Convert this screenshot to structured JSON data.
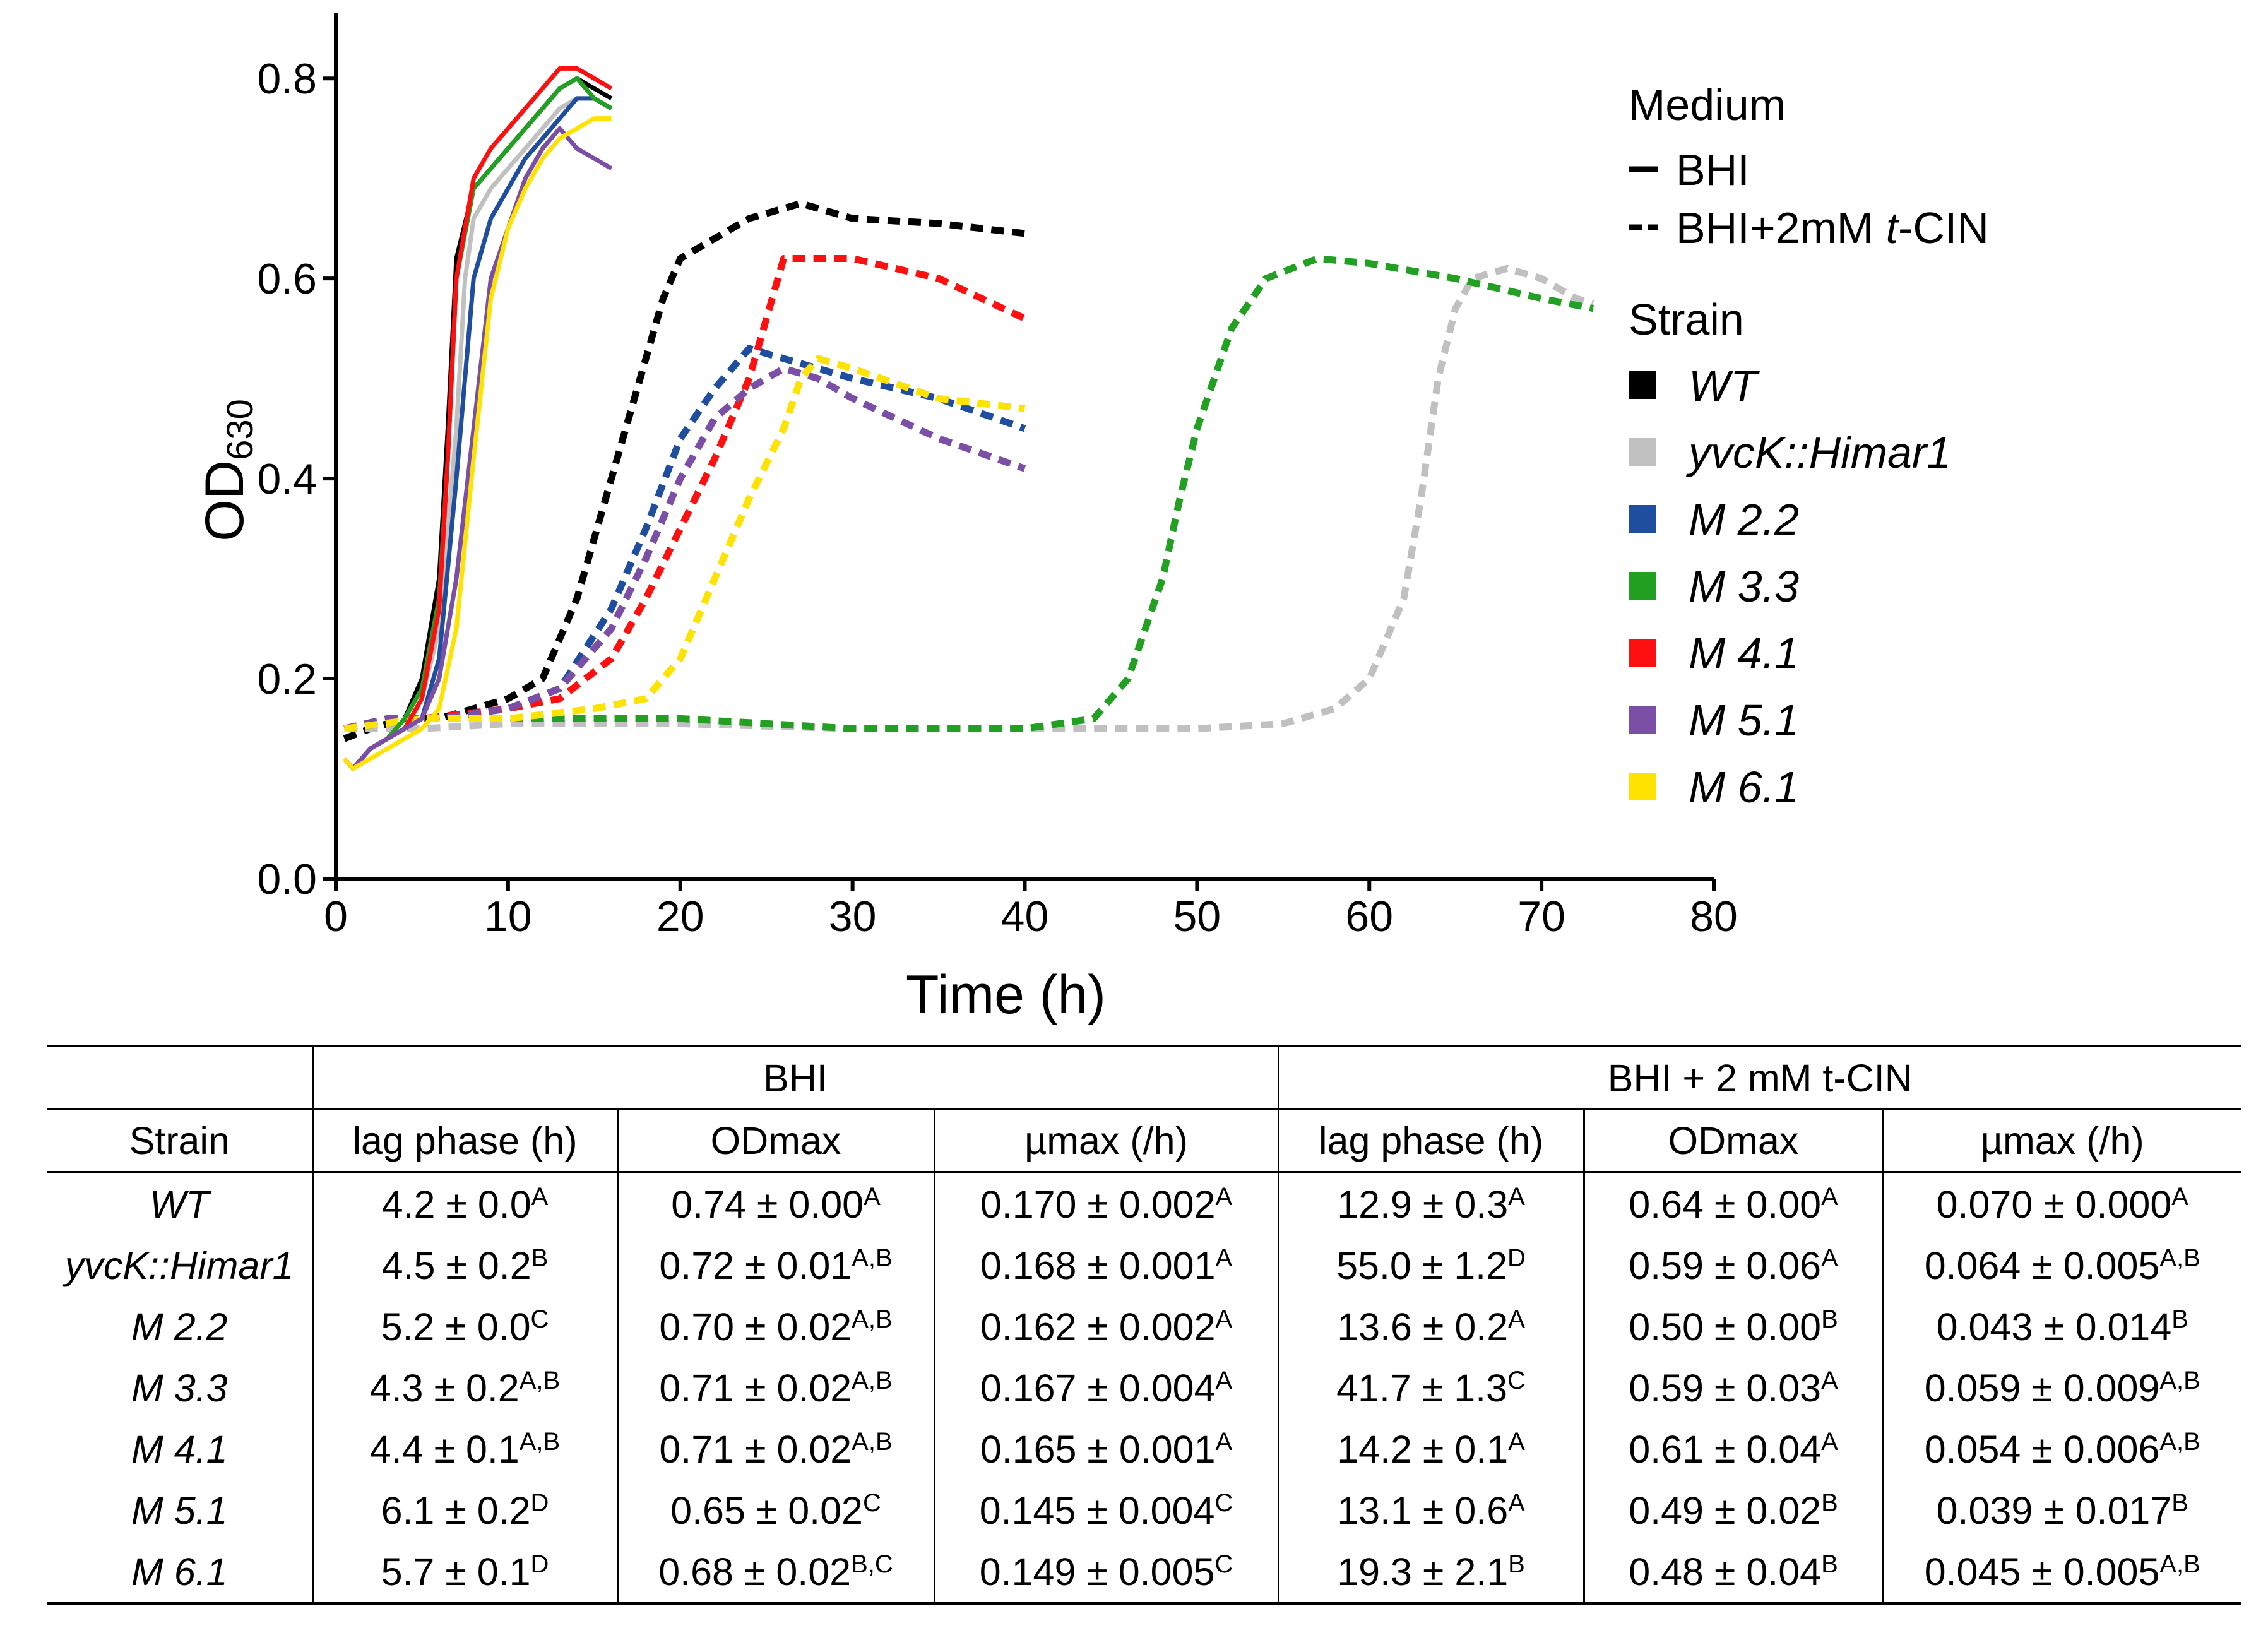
{
  "chart_data": {
    "type": "line",
    "xlabel": "Time (h)",
    "ylabel": "OD630",
    "ylabel_main": "OD",
    "ylabel_sub": "630",
    "xlim": [
      0,
      80
    ],
    "ylim": [
      0,
      0.85
    ],
    "xticks": [
      0,
      10,
      20,
      30,
      40,
      50,
      60,
      70,
      80
    ],
    "xtick_labels": [
      "0",
      "10",
      "20",
      "30",
      "40",
      "50",
      "60",
      "70",
      "80"
    ],
    "yticks": [
      0,
      0.2,
      0.4,
      0.6,
      0.8
    ],
    "ytick_labels": [
      "0.0",
      "0.2",
      "0.4",
      "0.6",
      "0.8"
    ],
    "grid": false,
    "legend": {
      "placement": "top-right",
      "medium_title": "Medium",
      "medium": [
        {
          "label": "BHI",
          "style": "solid"
        },
        {
          "label_prefix": "BHI+2mM ",
          "label_italic": "t",
          "label_suffix": "-CIN",
          "style": "dashed"
        }
      ],
      "strain_title": "Strain",
      "strains": [
        {
          "label": "WT",
          "color": "#000000"
        },
        {
          "label": "yvcK::Himar1",
          "color": "#c0c0c0"
        },
        {
          "label": "M 2.2",
          "color": "#1f4e9e"
        },
        {
          "label": "M 3.3",
          "color": "#22a022"
        },
        {
          "label": "M 4.1",
          "color": "#ff1010"
        },
        {
          "label": "M 5.1",
          "color": "#7b4fa6"
        },
        {
          "label": "M 6.1",
          "color": "#ffe300"
        }
      ]
    },
    "series": [
      {
        "strain": "WT",
        "medium": "BHI",
        "color": "#000000",
        "x": [
          0.5,
          1,
          2,
          3,
          4,
          5,
          6,
          6.5,
          7,
          8,
          9,
          10,
          11,
          12,
          13,
          14,
          15,
          16
        ],
        "y": [
          0.12,
          0.11,
          0.13,
          0.14,
          0.16,
          0.2,
          0.3,
          0.45,
          0.62,
          0.69,
          0.71,
          0.73,
          0.75,
          0.77,
          0.79,
          0.8,
          0.79,
          0.78
        ]
      },
      {
        "strain": "yvcK::Himar1",
        "medium": "BHI",
        "color": "#c0c0c0",
        "x": [
          0.5,
          1,
          2,
          3,
          4,
          5,
          6,
          7,
          7.5,
          8,
          9,
          10,
          11,
          12,
          13,
          14,
          15,
          16
        ],
        "y": [
          0.12,
          0.11,
          0.13,
          0.14,
          0.15,
          0.18,
          0.25,
          0.45,
          0.6,
          0.66,
          0.69,
          0.71,
          0.73,
          0.75,
          0.77,
          0.78,
          0.78,
          0.77
        ]
      },
      {
        "strain": "M 2.2",
        "medium": "BHI",
        "color": "#1f4e9e",
        "x": [
          0.5,
          1,
          2,
          3,
          4,
          5,
          6,
          7,
          8,
          9,
          10,
          11,
          12,
          13,
          14,
          15,
          16
        ],
        "y": [
          0.12,
          0.11,
          0.13,
          0.14,
          0.15,
          0.16,
          0.22,
          0.4,
          0.6,
          0.66,
          0.69,
          0.72,
          0.74,
          0.76,
          0.78,
          0.78,
          0.77
        ]
      },
      {
        "strain": "M 3.3",
        "medium": "BHI",
        "color": "#22a022",
        "x": [
          0.5,
          1,
          2,
          3,
          4,
          5,
          6,
          6.5,
          7,
          8,
          9,
          10,
          11,
          12,
          13,
          14,
          15,
          16
        ],
        "y": [
          0.12,
          0.11,
          0.13,
          0.14,
          0.16,
          0.19,
          0.28,
          0.42,
          0.6,
          0.69,
          0.71,
          0.73,
          0.75,
          0.77,
          0.79,
          0.8,
          0.78,
          0.77
        ]
      },
      {
        "strain": "M 4.1",
        "medium": "BHI",
        "color": "#ff1010",
        "x": [
          0.5,
          1,
          2,
          3,
          4,
          5,
          6,
          6.5,
          7,
          8,
          9,
          10,
          11,
          12,
          13,
          14,
          15,
          16
        ],
        "y": [
          0.12,
          0.11,
          0.13,
          0.14,
          0.15,
          0.18,
          0.27,
          0.42,
          0.6,
          0.7,
          0.73,
          0.75,
          0.77,
          0.79,
          0.81,
          0.81,
          0.8,
          0.79
        ]
      },
      {
        "strain": "M 5.1",
        "medium": "BHI",
        "color": "#7b4fa6",
        "x": [
          0.5,
          1,
          2,
          3,
          4,
          5,
          6,
          7,
          8,
          9,
          10,
          11,
          12,
          13,
          14,
          15,
          16
        ],
        "y": [
          0.12,
          0.11,
          0.13,
          0.14,
          0.15,
          0.16,
          0.2,
          0.3,
          0.45,
          0.6,
          0.65,
          0.7,
          0.73,
          0.75,
          0.73,
          0.72,
          0.71
        ]
      },
      {
        "strain": "M 6.1",
        "medium": "BHI",
        "color": "#ffe300",
        "x": [
          0.5,
          1,
          2,
          3,
          4,
          5,
          6,
          7,
          8,
          9,
          10,
          11,
          12,
          13,
          14,
          15,
          16
        ],
        "y": [
          0.12,
          0.11,
          0.12,
          0.13,
          0.14,
          0.15,
          0.17,
          0.25,
          0.42,
          0.58,
          0.65,
          0.69,
          0.72,
          0.74,
          0.75,
          0.76,
          0.76
        ]
      },
      {
        "strain": "WT",
        "medium": "BHI+2mM t-CIN",
        "color": "#000000",
        "x": [
          0.5,
          2,
          4,
          6,
          8,
          10,
          12,
          14,
          16,
          18,
          19,
          20,
          22,
          24,
          27,
          30,
          35,
          40
        ],
        "y": [
          0.14,
          0.15,
          0.16,
          0.16,
          0.17,
          0.18,
          0.2,
          0.28,
          0.4,
          0.52,
          0.58,
          0.62,
          0.64,
          0.66,
          0.675,
          0.66,
          0.655,
          0.645
        ]
      },
      {
        "strain": "yvcK::Himar1",
        "medium": "BHI+2mM t-CIN",
        "color": "#c0c0c0",
        "x": [
          0.5,
          5,
          10,
          20,
          30,
          40,
          50,
          55,
          58,
          60,
          62,
          63,
          64,
          65,
          66,
          68,
          70,
          72,
          73
        ],
        "y": [
          0.15,
          0.15,
          0.155,
          0.155,
          0.15,
          0.15,
          0.15,
          0.155,
          0.17,
          0.2,
          0.28,
          0.38,
          0.5,
          0.57,
          0.6,
          0.61,
          0.6,
          0.58,
          0.575
        ]
      },
      {
        "strain": "M 2.2",
        "medium": "BHI+2mM t-CIN",
        "color": "#1f4e9e",
        "x": [
          0.5,
          3,
          6,
          10,
          13,
          16,
          18,
          20,
          22,
          24,
          26,
          28,
          30,
          35,
          40
        ],
        "y": [
          0.15,
          0.16,
          0.16,
          0.17,
          0.19,
          0.27,
          0.35,
          0.44,
          0.49,
          0.53,
          0.52,
          0.51,
          0.5,
          0.48,
          0.45
        ]
      },
      {
        "strain": "M 3.3",
        "medium": "BHI+2mM t-CIN",
        "color": "#22a022",
        "x": [
          0.5,
          5,
          10,
          20,
          30,
          40,
          44,
          46,
          48,
          49,
          50,
          51,
          52,
          54,
          57,
          60,
          65,
          70,
          73
        ],
        "y": [
          0.15,
          0.16,
          0.16,
          0.16,
          0.15,
          0.15,
          0.16,
          0.2,
          0.3,
          0.38,
          0.45,
          0.5,
          0.55,
          0.6,
          0.62,
          0.615,
          0.6,
          0.58,
          0.57
        ]
      },
      {
        "strain": "M 4.1",
        "medium": "BHI+2mM t-CIN",
        "color": "#ff1010",
        "x": [
          0.5,
          5,
          10,
          13,
          16,
          18,
          20,
          22,
          24,
          26,
          28,
          30,
          35,
          40
        ],
        "y": [
          0.15,
          0.16,
          0.17,
          0.18,
          0.22,
          0.28,
          0.35,
          0.42,
          0.5,
          0.62,
          0.62,
          0.62,
          0.6,
          0.56
        ]
      },
      {
        "strain": "M 5.1",
        "medium": "BHI+2mM t-CIN",
        "color": "#7b4fa6",
        "x": [
          0.5,
          3,
          6,
          10,
          13,
          16,
          18,
          20,
          22,
          24,
          26,
          28,
          30,
          35,
          40
        ],
        "y": [
          0.15,
          0.16,
          0.16,
          0.17,
          0.19,
          0.25,
          0.32,
          0.4,
          0.46,
          0.49,
          0.51,
          0.5,
          0.48,
          0.44,
          0.41
        ]
      },
      {
        "strain": "M 6.1",
        "medium": "BHI+2mM t-CIN",
        "color": "#ffe300",
        "x": [
          0.5,
          5,
          10,
          15,
          18,
          20,
          22,
          24,
          26,
          27,
          28,
          30,
          35,
          40
        ],
        "y": [
          0.15,
          0.16,
          0.16,
          0.17,
          0.18,
          0.22,
          0.3,
          0.38,
          0.45,
          0.5,
          0.52,
          0.51,
          0.48,
          0.47
        ]
      }
    ]
  },
  "table": {
    "group_headers": [
      "BHI",
      "BHI + 2 mM t-CIN"
    ],
    "column_headers": [
      "Strain",
      "lag phase (h)",
      "ODmax",
      "µmax (/h)",
      "lag phase (h)",
      "ODmax",
      "µmax (/h)"
    ],
    "rows": [
      {
        "strain": "WT",
        "cells": [
          {
            "v": "4.2 ± 0.0",
            "s": "A"
          },
          {
            "v": "0.74 ± 0.00",
            "s": "A"
          },
          {
            "v": "0.170 ± 0.002",
            "s": "A"
          },
          {
            "v": "12.9 ± 0.3",
            "s": "A"
          },
          {
            "v": "0.64 ± 0.00",
            "s": "A"
          },
          {
            "v": "0.070 ± 0.000",
            "s": "A"
          }
        ]
      },
      {
        "strain": "yvcK::Himar1",
        "cells": [
          {
            "v": "4.5 ± 0.2",
            "s": "B"
          },
          {
            "v": "0.72 ± 0.01",
            "s": "A,B"
          },
          {
            "v": "0.168 ± 0.001",
            "s": "A"
          },
          {
            "v": "55.0 ± 1.2",
            "s": "D"
          },
          {
            "v": "0.59 ± 0.06",
            "s": "A"
          },
          {
            "v": "0.064 ± 0.005",
            "s": "A,B"
          }
        ]
      },
      {
        "strain": "M 2.2",
        "cells": [
          {
            "v": "5.2 ± 0.0",
            "s": "C"
          },
          {
            "v": "0.70 ± 0.02",
            "s": "A,B"
          },
          {
            "v": "0.162 ± 0.002",
            "s": "A"
          },
          {
            "v": "13.6 ± 0.2",
            "s": "A"
          },
          {
            "v": "0.50 ± 0.00",
            "s": "B"
          },
          {
            "v": "0.043 ± 0.014",
            "s": "B"
          }
        ]
      },
      {
        "strain": "M 3.3",
        "cells": [
          {
            "v": "4.3 ± 0.2",
            "s": "A,B"
          },
          {
            "v": "0.71 ± 0.02",
            "s": "A,B"
          },
          {
            "v": "0.167 ± 0.004",
            "s": "A"
          },
          {
            "v": "41.7 ± 1.3",
            "s": "C"
          },
          {
            "v": "0.59 ± 0.03",
            "s": "A"
          },
          {
            "v": "0.059 ± 0.009",
            "s": "A,B"
          }
        ]
      },
      {
        "strain": "M 4.1",
        "cells": [
          {
            "v": "4.4 ± 0.1",
            "s": "A,B"
          },
          {
            "v": "0.71 ± 0.02",
            "s": "A,B"
          },
          {
            "v": "0.165 ± 0.001",
            "s": "A"
          },
          {
            "v": "14.2 ± 0.1",
            "s": "A"
          },
          {
            "v": "0.61 ± 0.04",
            "s": "A"
          },
          {
            "v": "0.054 ± 0.006",
            "s": "A,B"
          }
        ]
      },
      {
        "strain": "M 5.1",
        "cells": [
          {
            "v": "6.1 ± 0.2",
            "s": "D"
          },
          {
            "v": "0.65 ± 0.02",
            "s": "C"
          },
          {
            "v": "0.145 ± 0.004",
            "s": "C"
          },
          {
            "v": "13.1 ± 0.6",
            "s": "A"
          },
          {
            "v": "0.49 ± 0.02",
            "s": "B"
          },
          {
            "v": "0.039 ± 0.017",
            "s": "B"
          }
        ]
      },
      {
        "strain": "M 6.1",
        "cells": [
          {
            "v": "5.7 ± 0.1",
            "s": "D"
          },
          {
            "v": "0.68 ± 0.02",
            "s": "B,C"
          },
          {
            "v": "0.149 ± 0.005",
            "s": "C"
          },
          {
            "v": "19.3 ± 2.1",
            "s": "B"
          },
          {
            "v": "0.48 ± 0.04",
            "s": "B"
          },
          {
            "v": "0.045 ± 0.005",
            "s": "A,B"
          }
        ]
      }
    ]
  }
}
